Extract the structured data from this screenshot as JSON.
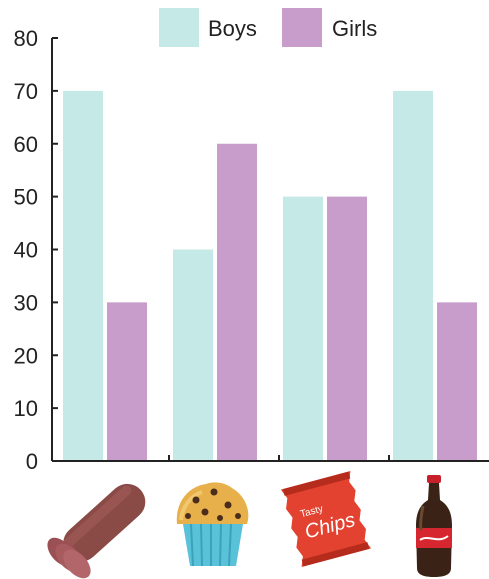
{
  "chart_data": {
    "type": "bar",
    "categories": [
      "",
      "",
      "",
      ""
    ],
    "category_icons": [
      "salami-icon",
      "muffin-icon",
      "chips-bag-icon",
      "cola-bottle-icon"
    ],
    "series": [
      {
        "name": "Boys",
        "values": [
          70,
          40,
          50,
          70
        ],
        "color": "#c5e9e6"
      },
      {
        "name": "Girls",
        "values": [
          30,
          60,
          50,
          30
        ],
        "color": "#c89ccb"
      }
    ],
    "ylim": [
      0,
      80
    ],
    "yticks": [
      "0",
      "10",
      "20",
      "30",
      "40",
      "50",
      "60",
      "70",
      "80"
    ],
    "grid": false,
    "legend": "top-center",
    "title": "",
    "xlabel": "",
    "ylabel": ""
  },
  "icons": {
    "chips_bag": {
      "line1": "Tasty",
      "line2": "Chips"
    }
  }
}
